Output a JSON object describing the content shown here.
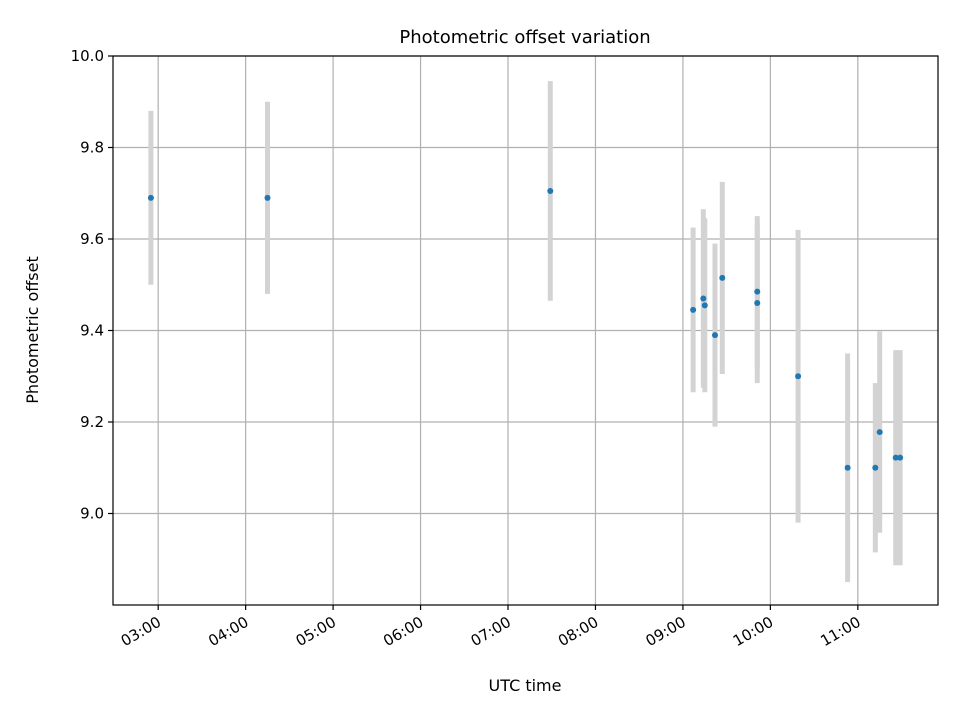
{
  "chart_data": {
    "type": "scatter",
    "title": "Photometric offset variation",
    "xlabel": "UTC time",
    "ylabel": "Photometric offset",
    "xlim": [
      "02:29",
      "11:55"
    ],
    "ylim": [
      8.8,
      10.0
    ],
    "x_ticks": [
      "03:00",
      "04:00",
      "05:00",
      "06:00",
      "07:00",
      "08:00",
      "09:00",
      "10:00",
      "11:00"
    ],
    "y_ticks": [
      9.0,
      9.2,
      9.4,
      9.6,
      9.8,
      10.0
    ],
    "y_tick_labels": [
      "9.0",
      "9.2",
      "9.4",
      "9.6",
      "9.8",
      "10.0"
    ],
    "grid": true,
    "point_color": "#1f77b4",
    "errorbar_color": "#d3d3d3",
    "series": [
      {
        "points": [
          {
            "x": "02:55",
            "y": 9.69,
            "err": 0.19
          },
          {
            "x": "04:15",
            "y": 9.69,
            "err": 0.21
          },
          {
            "x": "07:29",
            "y": 9.705,
            "err": 0.24
          },
          {
            "x": "09:07",
            "y": 9.445,
            "err": 0.18
          },
          {
            "x": "09:14",
            "y": 9.47,
            "err": 0.195
          },
          {
            "x": "09:15",
            "y": 9.455,
            "err": 0.19
          },
          {
            "x": "09:22",
            "y": 9.39,
            "err": 0.2
          },
          {
            "x": "09:27",
            "y": 9.515,
            "err": 0.21
          },
          {
            "x": "09:51",
            "y": 9.485,
            "err": 0.165
          },
          {
            "x": "09:51",
            "y": 9.46,
            "err": 0.175
          },
          {
            "x": "10:19",
            "y": 9.3,
            "err": 0.32
          },
          {
            "x": "10:53",
            "y": 9.1,
            "err": 0.25
          },
          {
            "x": "11:12",
            "y": 9.1,
            "err": 0.185
          },
          {
            "x": "11:15",
            "y": 9.178,
            "err": 0.22
          },
          {
            "x": "11:26",
            "y": 9.122,
            "err": 0.235
          },
          {
            "x": "11:29",
            "y": 9.122,
            "err": 0.235
          }
        ]
      }
    ]
  }
}
